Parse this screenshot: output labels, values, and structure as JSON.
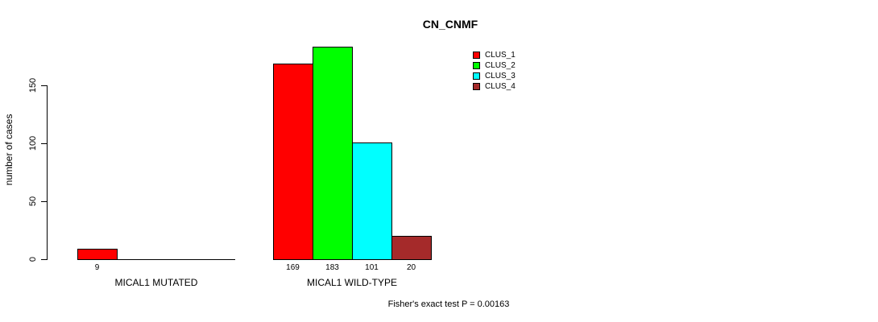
{
  "chart_data": {
    "type": "bar",
    "title": "CN_CNMF",
    "ylabel": "number of cases",
    "xlabel": "",
    "ylim": [
      0,
      150
    ],
    "y_ticks": [
      0,
      50,
      100,
      150
    ],
    "categories": [
      "MICAL1 MUTATED",
      "MICAL1 WILD-TYPE"
    ],
    "series": [
      {
        "name": "CLUS_1",
        "color": "#FF0000",
        "values": [
          9,
          169
        ]
      },
      {
        "name": "CLUS_2",
        "color": "#00FF00",
        "values": [
          0,
          183
        ]
      },
      {
        "name": "CLUS_3",
        "color": "#00FFFF",
        "values": [
          0,
          101
        ]
      },
      {
        "name": "CLUS_4",
        "color": "#A52A2A",
        "values": [
          0,
          20
        ]
      }
    ],
    "bar_value_labels": [
      "9",
      "169",
      "183",
      "101",
      "20"
    ],
    "legend_position": "top-right",
    "grid": false,
    "annotation": "Fisher's exact test P = 0.00163"
  }
}
